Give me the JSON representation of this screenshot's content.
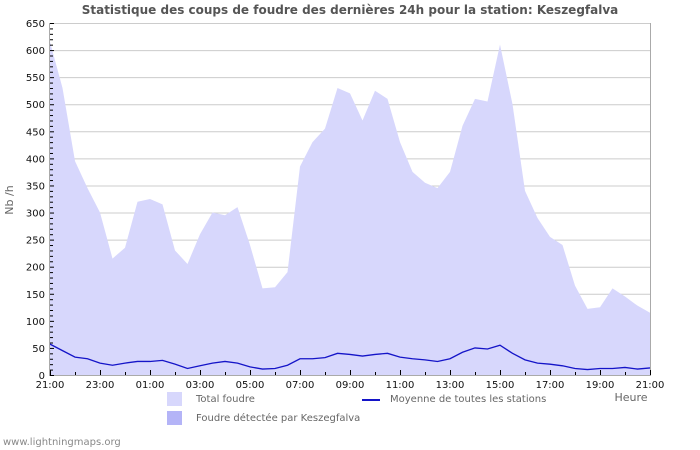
{
  "title": "Statistique des coups de foudre des dernières 24h pour la station: Keszegfalva",
  "footer": "www.lightningmaps.org",
  "colors": {
    "total_fill": "#d7d7fc",
    "station_fill": "#b4b4f7",
    "average_line": "#1414c8",
    "grid": "#cccccc",
    "axis": "#aaaaaa"
  },
  "legend": {
    "total": "Total foudre",
    "station": "Foudre détectée par Keszegfalva",
    "average": "Moyenne de toutes les stations"
  },
  "chart_data": {
    "type": "area",
    "title": "Statistique des coups de foudre des dernières 24h pour la station: Keszegfalva",
    "xlabel": "Heure",
    "ylabel": "Nb /h",
    "ylim": [
      0,
      650
    ],
    "yticks": [
      0,
      50,
      100,
      150,
      200,
      250,
      300,
      350,
      400,
      450,
      500,
      550,
      600,
      650
    ],
    "xtick_labels": [
      "21:00",
      "23:00",
      "01:00",
      "03:00",
      "05:00",
      "07:00",
      "09:00",
      "11:00",
      "13:00",
      "15:00",
      "17:00",
      "19:00",
      "21:00"
    ],
    "grid": true,
    "legend_position": "bottom",
    "x": [
      "21:00",
      "21:30",
      "22:00",
      "22:30",
      "23:00",
      "23:30",
      "00:00",
      "00:30",
      "01:00",
      "01:30",
      "02:00",
      "02:30",
      "03:00",
      "03:30",
      "04:00",
      "04:30",
      "05:00",
      "05:30",
      "06:00",
      "06:30",
      "07:00",
      "07:30",
      "08:00",
      "08:30",
      "09:00",
      "09:30",
      "10:00",
      "10:30",
      "11:00",
      "11:30",
      "12:00",
      "12:30",
      "13:00",
      "13:30",
      "14:00",
      "14:30",
      "15:00",
      "15:30",
      "16:00",
      "16:30",
      "17:00",
      "17:30",
      "18:00",
      "18:30",
      "19:00",
      "19:30",
      "20:00",
      "20:30",
      "21:00"
    ],
    "series": [
      {
        "name": "Total foudre",
        "values": [
          615,
          530,
          395,
          345,
          300,
          215,
          235,
          320,
          325,
          315,
          230,
          205,
          260,
          300,
          295,
          310,
          240,
          160,
          162,
          190,
          385,
          430,
          455,
          530,
          520,
          470,
          525,
          510,
          430,
          375,
          355,
          345,
          375,
          460,
          510,
          505,
          610,
          500,
          340,
          290,
          255,
          240,
          165,
          122,
          125,
          160,
          145,
          128,
          115
        ]
      },
      {
        "name": "Foudre détectée par Keszegfalva",
        "values": [
          0,
          0,
          0,
          0,
          0,
          0,
          0,
          0,
          0,
          0,
          0,
          0,
          0,
          0,
          0,
          0,
          0,
          0,
          0,
          0,
          0,
          0,
          0,
          0,
          0,
          0,
          0,
          0,
          0,
          0,
          0,
          0,
          0,
          0,
          0,
          0,
          0,
          0,
          0,
          0,
          0,
          0,
          0,
          0,
          0,
          0,
          0,
          0,
          0
        ]
      },
      {
        "name": "Moyenne de toutes les stations",
        "values": [
          57,
          45,
          33,
          30,
          22,
          18,
          22,
          25,
          25,
          27,
          20,
          12,
          17,
          22,
          25,
          22,
          15,
          11,
          12,
          18,
          30,
          30,
          32,
          40,
          38,
          35,
          38,
          40,
          33,
          30,
          28,
          25,
          30,
          42,
          50,
          48,
          55,
          40,
          28,
          22,
          20,
          17,
          12,
          10,
          12,
          12,
          14,
          11,
          13
        ]
      }
    ]
  }
}
